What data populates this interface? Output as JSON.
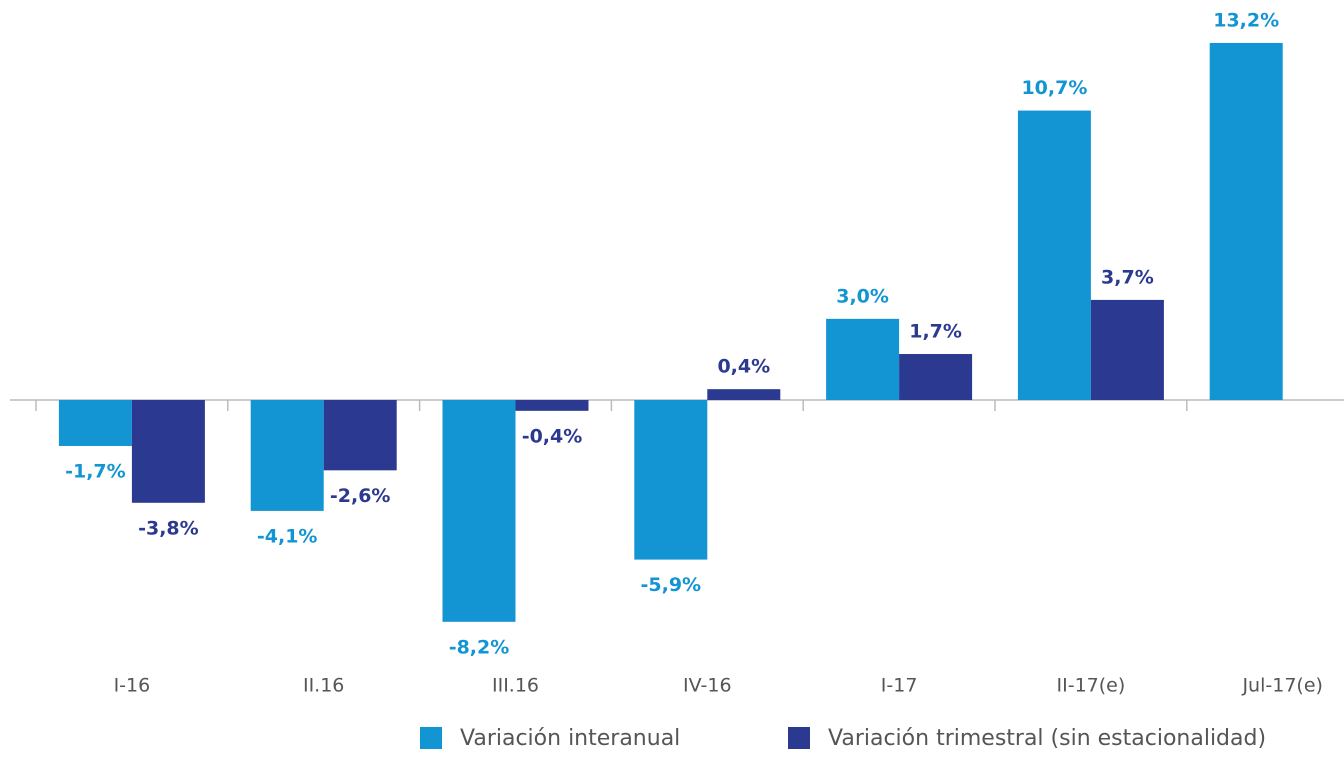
{
  "chart_data": {
    "type": "bar",
    "categories": [
      "I-16",
      "II.16",
      "III.16",
      "IV-16",
      "I-17",
      "II-17(e)",
      "Jul-17(e)"
    ],
    "series": [
      {
        "name": "Variación interanual",
        "color": "#1495d3",
        "values": [
          -1.7,
          -4.1,
          -8.2,
          -5.9,
          3.0,
          10.7,
          13.2
        ],
        "value_labels": [
          "-1,7%",
          "-4,1%",
          "-8,2%",
          "-5,9%",
          "3,0%",
          "10,7%",
          "13,2%"
        ]
      },
      {
        "name": "Variación trimestral (sin estacionalidad)",
        "color": "#2b3990",
        "values": [
          -3.8,
          -2.6,
          -0.4,
          0.4,
          1.7,
          3.7,
          null
        ],
        "value_labels": [
          "-3,8%",
          "-2,6%",
          "-0,4%",
          "0,4%",
          "1,7%",
          "3,7%",
          null
        ]
      }
    ],
    "ylim": [
      -10,
      14
    ],
    "legend": "bottom"
  }
}
